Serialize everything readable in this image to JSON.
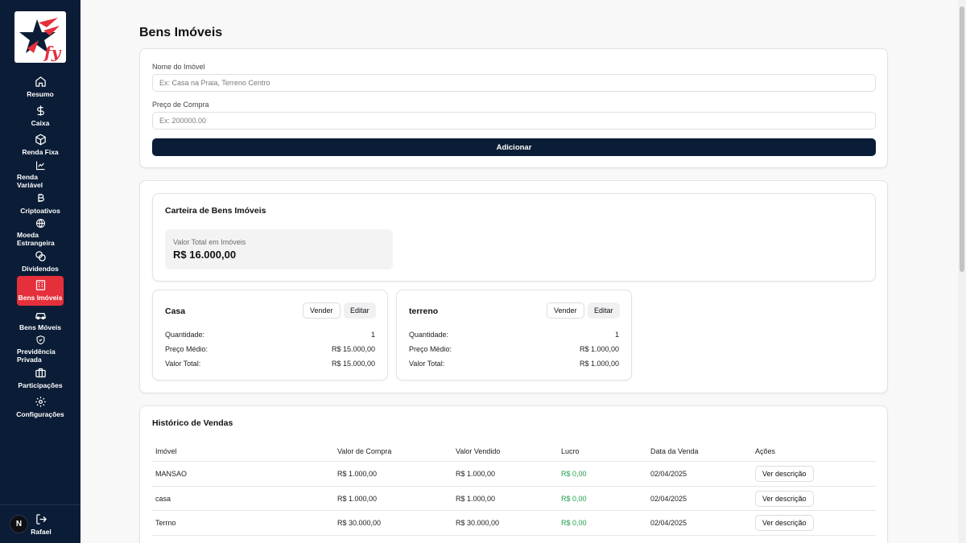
{
  "sidebar": {
    "items": [
      {
        "label": "Resumo",
        "icon": "home-icon"
      },
      {
        "label": "Caixa",
        "icon": "dollar-icon"
      },
      {
        "label": "Renda Fixa",
        "icon": "box-icon"
      },
      {
        "label": "Renda Variável",
        "icon": "chart-line-icon"
      },
      {
        "label": "Criptoativos",
        "icon": "bitcoin-icon"
      },
      {
        "label": "Moeda Estrangeira",
        "icon": "globe-icon"
      },
      {
        "label": "Dividendos",
        "icon": "coins-icon"
      },
      {
        "label": "Bens Imóveis",
        "icon": "building-icon"
      },
      {
        "label": "Bens Móveis",
        "icon": "car-icon"
      },
      {
        "label": "Previdência Privada",
        "icon": "shield-icon"
      },
      {
        "label": "Participações",
        "icon": "briefcase-icon"
      },
      {
        "label": "Configurações",
        "icon": "gear-icon"
      }
    ],
    "active_index": 7,
    "avatar_initial": "N",
    "user_name": "Rafael",
    "logo_text": "fy"
  },
  "page": {
    "title": "Bens Imóveis"
  },
  "form": {
    "name_label": "Nome do Imóvel",
    "name_placeholder": "Ex: Casa na Praia, Terreno Centro",
    "price_label": "Preço de Compra",
    "price_placeholder": "Ex: 200000.00",
    "submit_label": "Adicionar"
  },
  "portfolio": {
    "title": "Carteira de Bens Imóveis",
    "total_label": "Valor Total em Imóveis",
    "total_value": "R$ 16.000,00",
    "assets": [
      {
        "name": "Casa",
        "sell_label": "Vender",
        "edit_label": "Editar",
        "qty_label": "Quantidade:",
        "qty": "1",
        "avg_label": "Preço Médio:",
        "avg": "R$ 15.000,00",
        "total_label": "Valor Total:",
        "total": "R$ 15.000,00"
      },
      {
        "name": "terreno",
        "sell_label": "Vender",
        "edit_label": "Editar",
        "qty_label": "Quantidade:",
        "qty": "1",
        "avg_label": "Preço Médio:",
        "avg": "R$ 1.000,00",
        "total_label": "Valor Total:",
        "total": "R$ 1.000,00"
      }
    ]
  },
  "history": {
    "title": "Histórico de Vendas",
    "columns": [
      "Imóvel",
      "Valor de Compra",
      "Valor Vendido",
      "Lucro",
      "Data da Venda",
      "Ações"
    ],
    "rows": [
      {
        "name": "MANSAO",
        "buy": "R$ 1.000,00",
        "sold": "R$ 1.000,00",
        "profit": "R$ 0,00",
        "date": "02/04/2025",
        "action": "Ver descrição"
      },
      {
        "name": "casa",
        "buy": "R$ 1.000,00",
        "sold": "R$ 1.000,00",
        "profit": "R$ 0,00",
        "date": "02/04/2025",
        "action": "Ver descrição"
      },
      {
        "name": "Terrno",
        "buy": "R$ 30.000,00",
        "sold": "R$ 30.000,00",
        "profit": "R$ 0,00",
        "date": "02/04/2025",
        "action": "Ver descrição"
      }
    ]
  },
  "colors": {
    "sidebar_bg": "#0b1d36",
    "active_item": "#e5303b",
    "primary_button": "#0b1d36",
    "profit_green": "#1f9d4d"
  }
}
